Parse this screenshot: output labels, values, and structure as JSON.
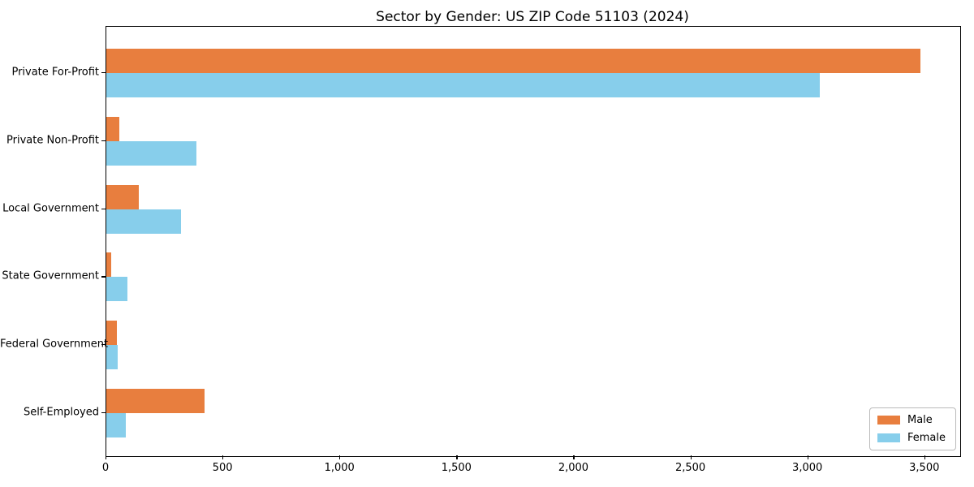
{
  "chart_data": {
    "type": "bar",
    "orientation": "horizontal",
    "title": "Sector by Gender: US ZIP Code 51103 (2024)",
    "categories": [
      "Private For-Profit",
      "Private Non-Profit",
      "Local Government",
      "State Government",
      "Federal Government",
      "Self-Employed"
    ],
    "series": [
      {
        "name": "Male",
        "color": "#e87e3e",
        "values": [
          3480,
          55,
          140,
          20,
          45,
          420
        ]
      },
      {
        "name": "Female",
        "color": "#87ceeb",
        "values": [
          3050,
          385,
          320,
          90,
          50,
          85
        ]
      }
    ],
    "xlabel": "",
    "ylabel": "",
    "xlim": [
      0,
      3650
    ],
    "x_ticks": {
      "values": [
        0,
        500,
        1000,
        1500,
        2000,
        2500,
        3000,
        3500
      ],
      "labels": [
        "0",
        "500",
        "1,000",
        "1,500",
        "2,000",
        "2,500",
        "3,000",
        "3,500"
      ]
    },
    "grid": false,
    "legend_position": "lower right",
    "axis_color": "#000000",
    "background_color": "#ffffff"
  }
}
